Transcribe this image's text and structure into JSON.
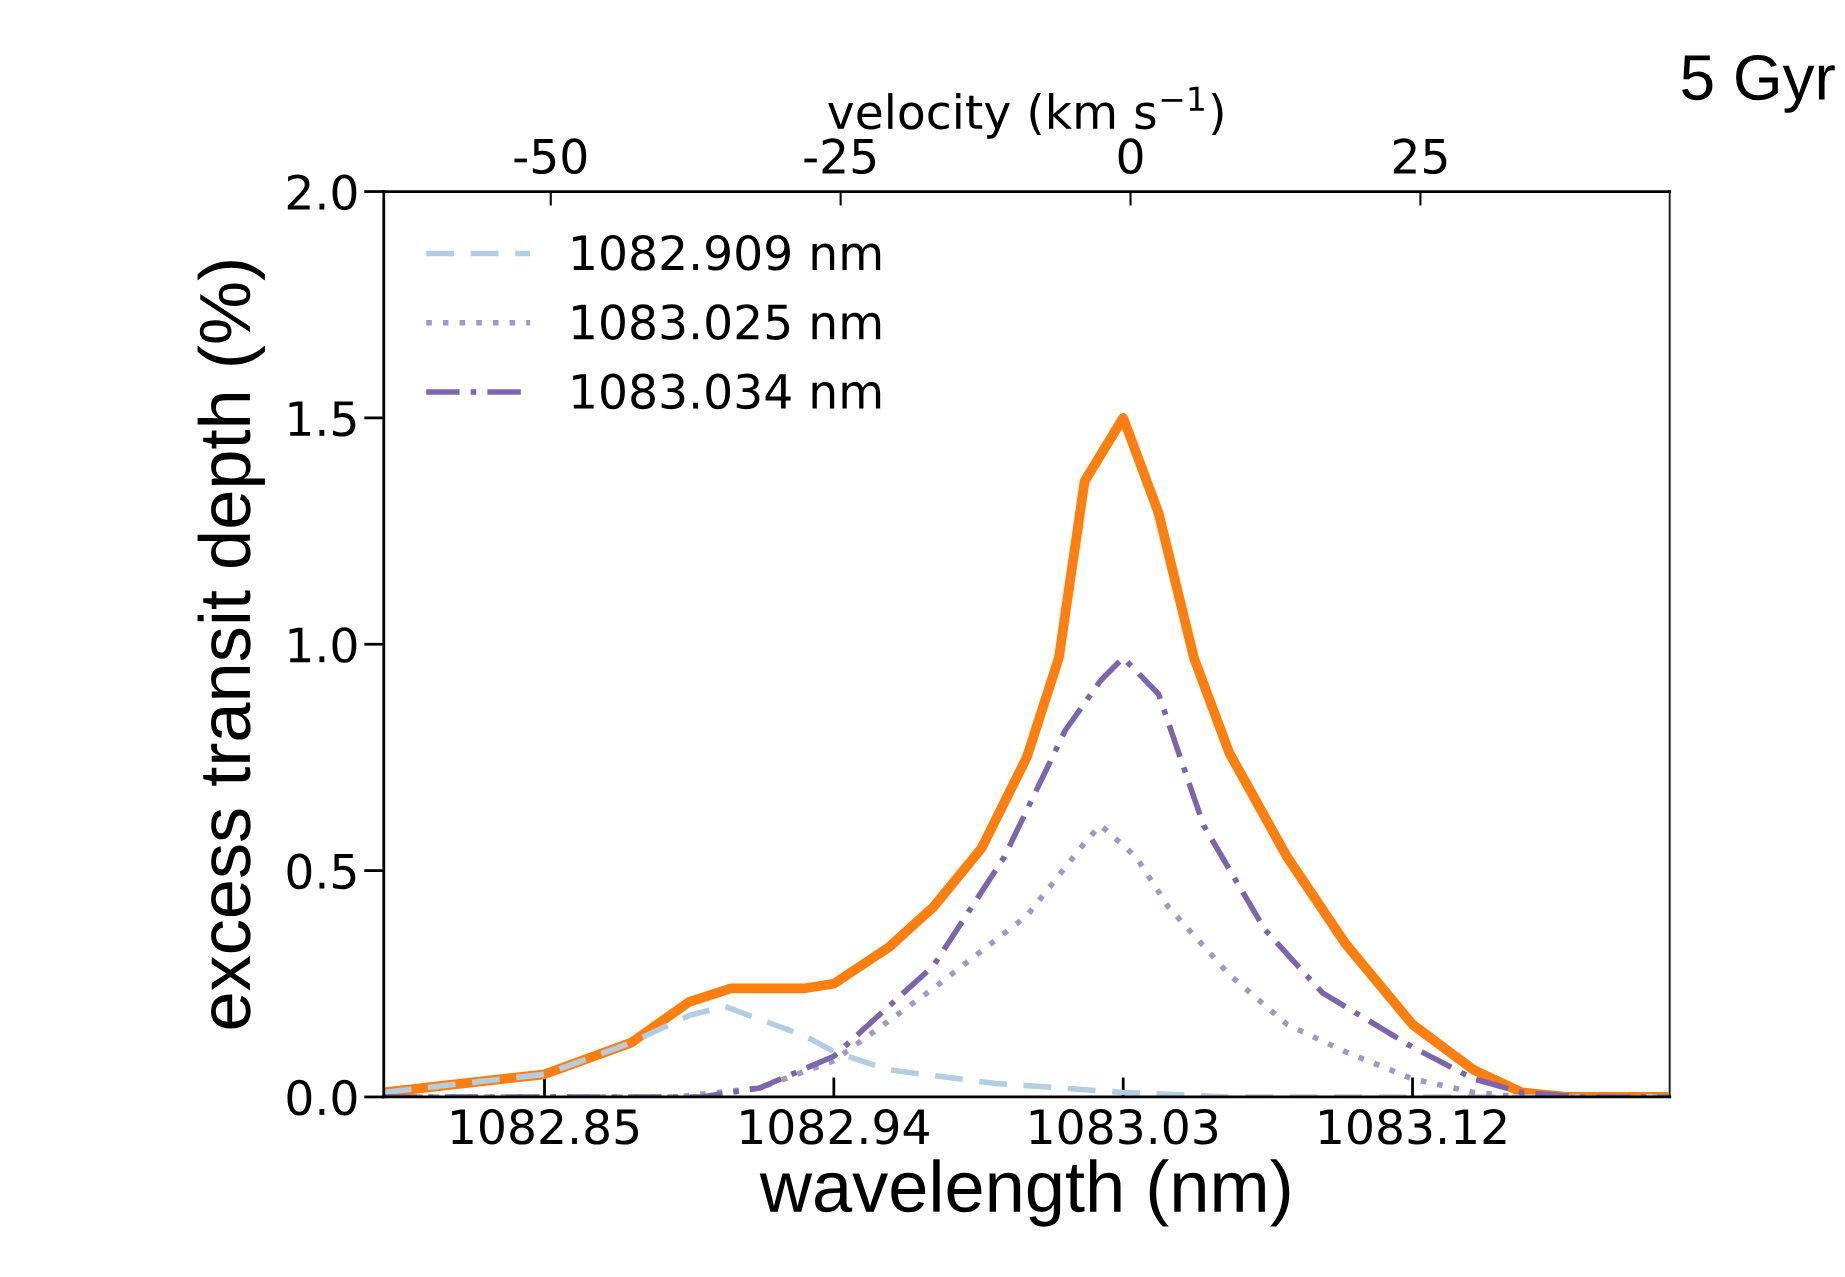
{
  "chart_data": {
    "type": "line",
    "xlabel": "wavelength (nm)",
    "ylabel": "excess transit depth (%)",
    "x2label": "velocity (km s$^{−1}$)",
    "annotations": [
      "5 Gyr"
    ],
    "xlim": [
      1082.8,
      1083.2
    ],
    "xticks": [
      1082.85,
      1082.94,
      1083.03,
      1083.12
    ],
    "ylim": [
      0,
      2.0
    ],
    "yticks": [
      {
        "value": 0,
        "label": "0.0"
      },
      {
        "value": 0.5,
        "label": "0.5"
      },
      {
        "value": 1,
        "label": "1.0"
      },
      {
        "value": 1.5,
        "label": "1.5"
      },
      {
        "value": 2,
        "label": "2.0"
      }
    ],
    "x2lim": [
      -64.4,
      46.5
    ],
    "x2ticks": [
      -50,
      -25,
      0,
      25
    ],
    "legend": "top left",
    "grid": false,
    "series": [
      {
        "color": "#ff7f0e",
        "line_style": "solid",
        "x": [
          1082.8,
          1082.85,
          1082.877,
          1082.895,
          1082.908,
          1082.931,
          1082.94,
          1082.957,
          1082.971,
          1082.986,
          1083.0,
          1083.01,
          1083.018,
          1083.03,
          1083.041,
          1083.052,
          1083.063,
          1083.081,
          1083.099,
          1083.12,
          1083.139,
          1083.154,
          1083.168,
          1083.2
        ],
        "values": [
          0.01,
          0.05,
          0.12,
          0.21,
          0.24,
          0.24,
          0.25,
          0.33,
          0.42,
          0.55,
          0.75,
          0.97,
          1.36,
          1.5,
          1.29,
          0.97,
          0.76,
          0.53,
          0.34,
          0.16,
          0.06,
          0.01,
          0,
          0
        ]
      },
      {
        "name": "1082.909 nm",
        "color": "#b3cde3",
        "line_style": "dashed",
        "x": [
          1082.8,
          1082.85,
          1082.877,
          1082.895,
          1082.906,
          1082.931,
          1082.94,
          1082.957,
          1082.99,
          1083.03,
          1083.063,
          1083.2
        ],
        "values": [
          0.01,
          0.05,
          0.12,
          0.18,
          0.2,
          0.135,
          0.1,
          0.06,
          0.03,
          0.01,
          0,
          0
        ]
      },
      {
        "name": "1083.025 nm",
        "color": "#9e9ac8",
        "line_style": "dotted",
        "x": [
          1082.8,
          1082.891,
          1082.917,
          1082.94,
          1082.971,
          1083.0,
          1083.019,
          1083.023,
          1083.034,
          1083.044,
          1083.063,
          1083.081,
          1083.099,
          1083.12,
          1083.139,
          1083.154,
          1083.2
        ],
        "values": [
          0,
          0,
          0.02,
          0.08,
          0.24,
          0.4,
          0.57,
          0.6,
          0.53,
          0.42,
          0.27,
          0.16,
          0.1,
          0.04,
          0.01,
          0,
          0
        ]
      },
      {
        "name": "1083.034 nm",
        "color": "#7d65ad",
        "line_style": "dashdot",
        "x": [
          1082.8,
          1082.899,
          1082.917,
          1082.94,
          1082.971,
          1082.993,
          1083.012,
          1083.023,
          1083.03,
          1083.041,
          1083.055,
          1083.074,
          1083.092,
          1083.12,
          1083.139,
          1083.154,
          1083.172,
          1083.2
        ],
        "values": [
          0,
          0,
          0.02,
          0.09,
          0.29,
          0.53,
          0.81,
          0.92,
          0.97,
          0.89,
          0.6,
          0.37,
          0.23,
          0.11,
          0.04,
          0.01,
          0,
          0
        ]
      }
    ]
  }
}
